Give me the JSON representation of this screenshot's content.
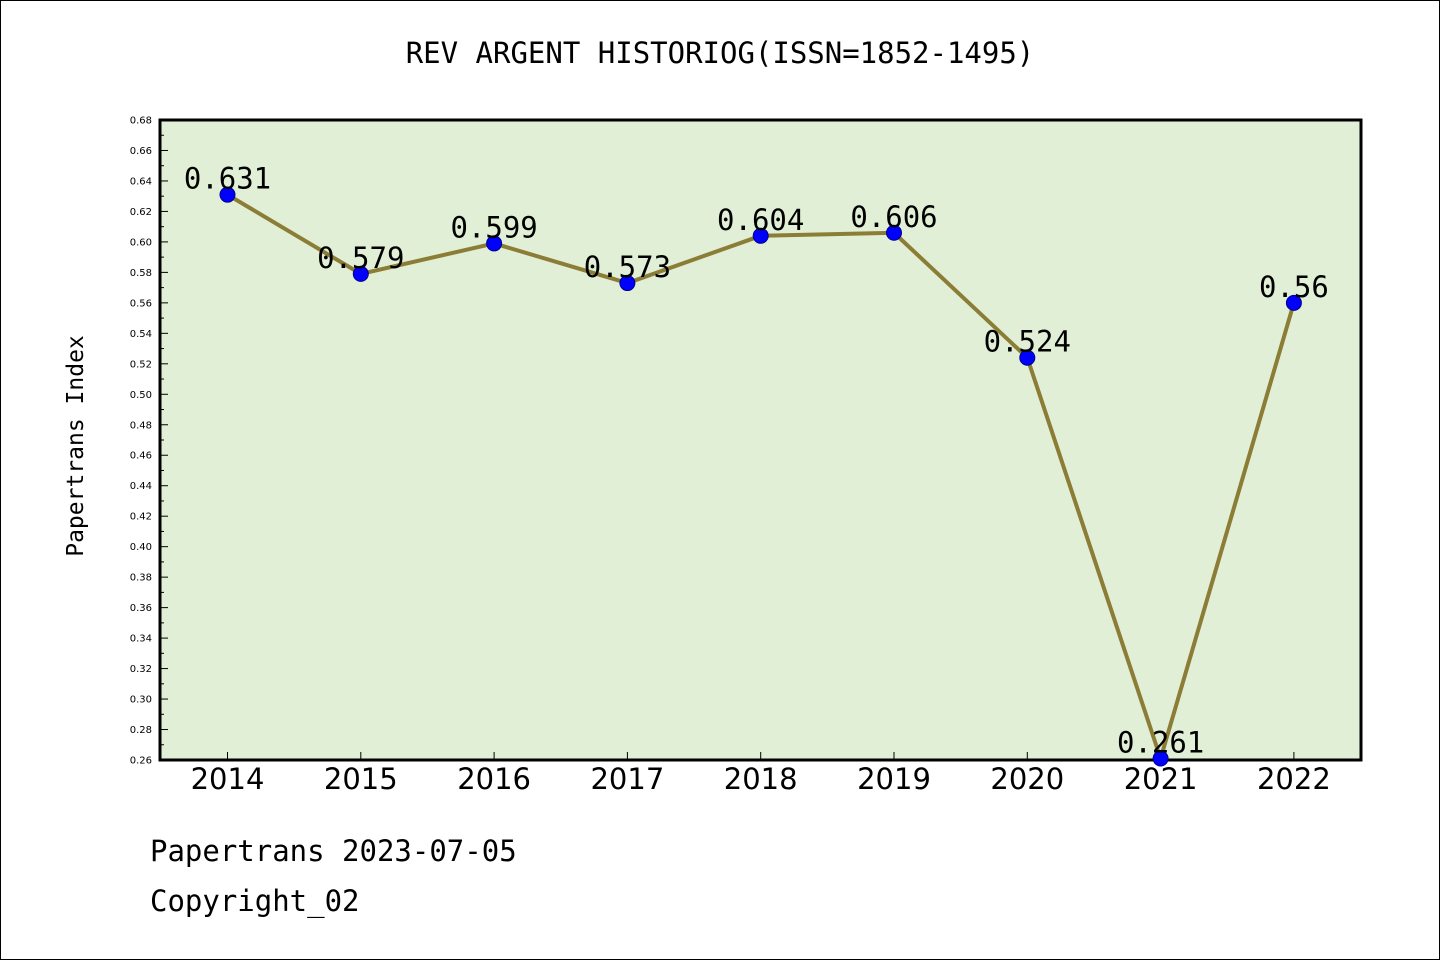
{
  "page": {
    "title": "REV ARGENT HISTORIOG(ISSN=1852-1495)",
    "ylabel": "Papertrans Index",
    "footer_line1": "Papertrans 2023-07-05",
    "footer_line2": "Copyright_02"
  },
  "colors": {
    "plot_background": "#e1efd6",
    "line": "#8b7d36",
    "marker": "#0000ff"
  },
  "chart_data": {
    "type": "line",
    "title": "REV ARGENT HISTORIOG(ISSN=1852-1495)",
    "xlabel": "",
    "ylabel": "Papertrans Index",
    "categories": [
      "2014",
      "2015",
      "2016",
      "2017",
      "2018",
      "2019",
      "2020",
      "2021",
      "2022"
    ],
    "values": [
      0.631,
      0.579,
      0.599,
      0.573,
      0.604,
      0.606,
      0.524,
      0.261,
      0.56
    ],
    "data_labels": [
      "0.631",
      "0.579",
      "0.599",
      "0.573",
      "0.604",
      "0.606",
      "0.524",
      "0.261",
      "0.56"
    ],
    "ylim": [
      0.26,
      0.68
    ],
    "yticks": [
      "0.26",
      "0.28",
      "0.30",
      "0.32",
      "0.34",
      "0.36",
      "0.38",
      "0.40",
      "0.42",
      "0.44",
      "0.46",
      "0.48",
      "0.50",
      "0.52",
      "0.54",
      "0.56",
      "0.58",
      "0.60",
      "0.62",
      "0.64",
      "0.66",
      "0.68"
    ],
    "grid": false,
    "legend": "none"
  }
}
